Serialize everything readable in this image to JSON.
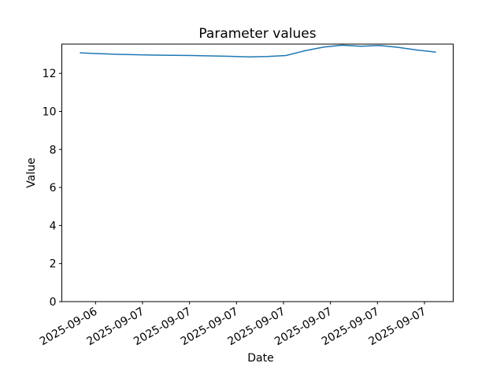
{
  "figure": {
    "background": "#ffffff",
    "text_color": "#000000",
    "spine_color": "#000000"
  },
  "chart_data": {
    "type": "line",
    "title": "Parameter values",
    "xlabel": "Date",
    "ylabel": "Value",
    "grid": false,
    "legend": null,
    "ylim": [
      0,
      13.54
    ],
    "y_ticks": [
      0,
      2,
      4,
      6,
      8,
      10,
      12
    ],
    "x_tick_labels": [
      "2025-09-06",
      "2025-09-07",
      "2025-09-07",
      "2025-09-07",
      "2025-09-07",
      "2025-09-07",
      "2025-09-07",
      "2025-09-07"
    ],
    "x_tick_rotation_deg": 30,
    "series": [
      {
        "name": "Parameter values",
        "color": "#1f77b4",
        "line_width": 1.5,
        "values": [
          13.08,
          13.04,
          13.0,
          12.98,
          12.96,
          12.95,
          12.94,
          12.92,
          12.9,
          12.87,
          12.89,
          12.94,
          13.19,
          13.38,
          13.48,
          13.43,
          13.47,
          13.37,
          13.23,
          13.12
        ]
      }
    ]
  }
}
